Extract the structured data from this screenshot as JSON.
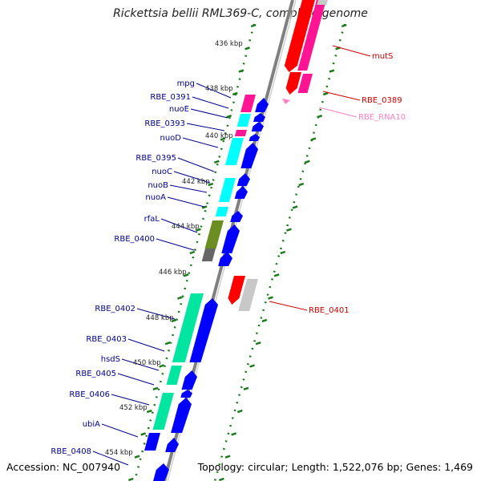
{
  "title": "Rickettsia bellii RML369-C, complete genome",
  "accession": "Accession: NC_007940",
  "summary": "Topology: circular; Length: 1,522,076 bp; Genes: 1,469",
  "colors": {
    "backbone": "#808080",
    "tick_green": "#1a7a1a",
    "cds_plus": "#0000ff",
    "cds_minus": "#ff0000",
    "rna": "#ff80c0",
    "cog_cyan": "#00ffff",
    "cog_teal": "#00e6a0",
    "cog_pink": "#ff1493",
    "cog_olive": "#6b8e23",
    "cog_gray": "#666666",
    "cog_lightgray": "#c8c8c8",
    "label_blue": "#00008b",
    "label_red": "#cc0000",
    "label_pink": "#ff80c0"
  },
  "kbp_ticks": [
    "436 kbp",
    "438 kbp",
    "440 kbp",
    "442 kbp",
    "444 kbp",
    "446 kbp",
    "448 kbp",
    "450 kbp",
    "452 kbp",
    "454 kbp"
  ],
  "left_labels": [
    "mpg",
    "RBE_0391",
    "nuoE",
    "RBE_0393",
    "nuoD",
    "RBE_0395",
    "nuoC",
    "nuoB",
    "nuoA",
    "rfaL",
    "RBE_0400",
    "RBE_0402",
    "RBE_0403",
    "hsdS",
    "RBE_0405",
    "RBE_0406",
    "ubiA",
    "RBE_0408"
  ],
  "right_labels": [
    "mutS",
    "RBE_0389",
    "RBE_RNA10",
    "RBE_0401"
  ]
}
